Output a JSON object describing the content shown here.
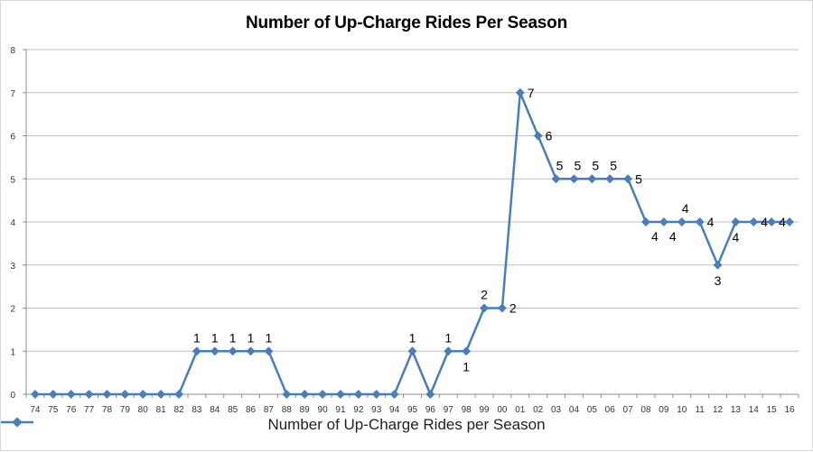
{
  "chart_data": {
    "type": "line",
    "title": "Number of Up-Charge Rides Per Season",
    "xlabel": "",
    "ylabel": "",
    "ylim": [
      0,
      8
    ],
    "yticks": [
      0,
      1,
      2,
      3,
      4,
      5,
      6,
      7,
      8
    ],
    "grid": true,
    "legend_position": "bottom",
    "categories": [
      "74",
      "75",
      "76",
      "77",
      "78",
      "79",
      "80",
      "81",
      "82",
      "83",
      "84",
      "85",
      "86",
      "87",
      "88",
      "89",
      "90",
      "91",
      "92",
      "93",
      "94",
      "95",
      "96",
      "97",
      "98",
      "99",
      "00",
      "01",
      "02",
      "03",
      "04",
      "05",
      "06",
      "07",
      "08",
      "09",
      "10",
      "11",
      "12",
      "13",
      "14",
      "15",
      "16"
    ],
    "series": [
      {
        "name": "Number of Up-Charge Rides per Season",
        "color": "#4a7ebb",
        "values": [
          0,
          0,
          0,
          0,
          0,
          0,
          0,
          0,
          0,
          1,
          1,
          1,
          1,
          1,
          0,
          0,
          0,
          0,
          0,
          0,
          0,
          1,
          0,
          1,
          1,
          2,
          2,
          7,
          6,
          5,
          5,
          5,
          5,
          5,
          4,
          4,
          4,
          4,
          3,
          4,
          4,
          4,
          4
        ]
      }
    ],
    "data_labels": [
      {
        "index": 9,
        "text": "1",
        "pos": "above"
      },
      {
        "index": 10,
        "text": "1",
        "pos": "above"
      },
      {
        "index": 11,
        "text": "1",
        "pos": "above"
      },
      {
        "index": 12,
        "text": "1",
        "pos": "above"
      },
      {
        "index": 13,
        "text": "1",
        "pos": "above"
      },
      {
        "index": 21,
        "text": "1",
        "pos": "above"
      },
      {
        "index": 23,
        "text": "1",
        "pos": "above"
      },
      {
        "index": 24,
        "text": "1",
        "pos": "below"
      },
      {
        "index": 25,
        "text": "2",
        "pos": "above"
      },
      {
        "index": 26,
        "text": "2",
        "pos": "right"
      },
      {
        "index": 27,
        "text": "7",
        "pos": "right"
      },
      {
        "index": 28,
        "text": "6",
        "pos": "right"
      },
      {
        "index": 29,
        "text": "5",
        "pos": "above-right"
      },
      {
        "index": 30,
        "text": "5",
        "pos": "above-right"
      },
      {
        "index": 31,
        "text": "5",
        "pos": "above-right"
      },
      {
        "index": 32,
        "text": "5",
        "pos": "above-right"
      },
      {
        "index": 33,
        "text": "5",
        "pos": "right"
      },
      {
        "index": 34,
        "text": "4",
        "pos": "below-right"
      },
      {
        "index": 35,
        "text": "4",
        "pos": "below-right"
      },
      {
        "index": 36,
        "text": "4",
        "pos": "above-right"
      },
      {
        "index": 37,
        "text": "4",
        "pos": "right"
      },
      {
        "index": 38,
        "text": "3",
        "pos": "below"
      },
      {
        "index": 39,
        "text": "4",
        "pos": "below"
      },
      {
        "index": 40,
        "text": "4",
        "pos": "right"
      },
      {
        "index": 41,
        "text": "4",
        "pos": "right"
      }
    ]
  }
}
